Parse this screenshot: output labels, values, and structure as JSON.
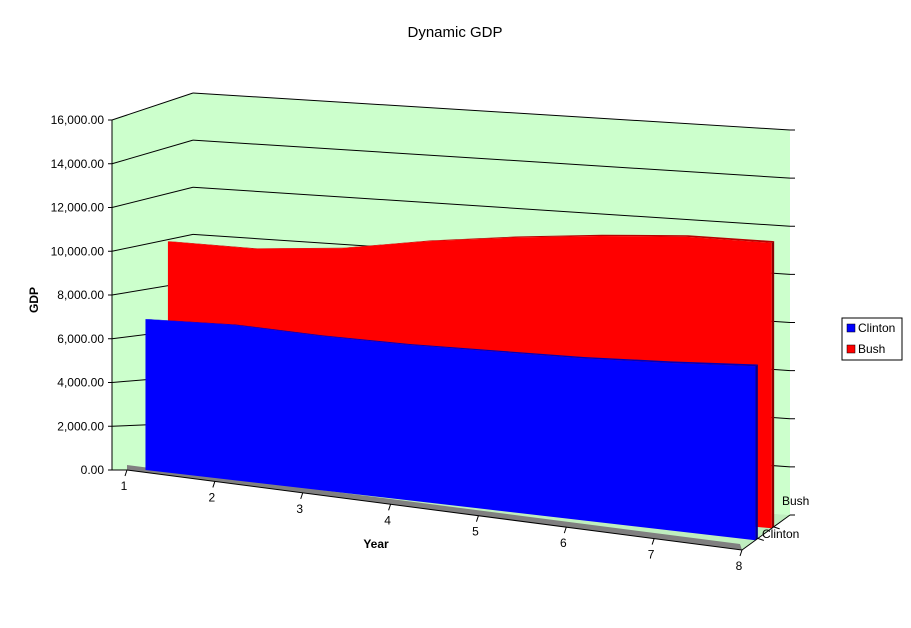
{
  "chart_data": {
    "type": "area",
    "title": "Dynamic GDP",
    "xlabel": "Year",
    "ylabel": "GDP",
    "x": [
      1,
      2,
      3,
      4,
      5,
      6,
      7,
      8
    ],
    "y_ticks": [
      "0.00",
      "2,000.00",
      "4,000.00",
      "6,000.00",
      "8,000.00",
      "10,000.00",
      "12,000.00",
      "14,000.00",
      "16,000.00"
    ],
    "ylim": [
      0,
      16000
    ],
    "depth_labels": [
      "Bush",
      "Clinton"
    ],
    "series": [
      {
        "name": "Clinton",
        "color": "#0000ff",
        "values": [
          6900,
          7100,
          7050,
          7100,
          7250,
          7400,
          7650,
          7950
        ]
      },
      {
        "name": "Bush",
        "color": "#ff0000",
        "values": [
          10450,
          10500,
          10900,
          11600,
          12150,
          12600,
          12950,
          13050
        ]
      }
    ],
    "legend_position": "right",
    "wall_color": "#ccffcc",
    "floor_color": "#808080",
    "grid": true
  }
}
